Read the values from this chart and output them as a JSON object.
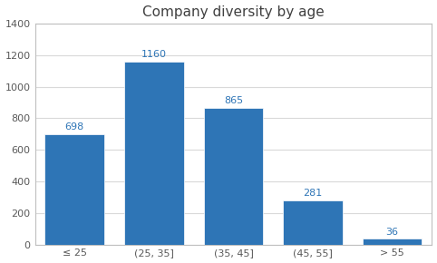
{
  "title": "Company diversity by age",
  "categories": [
    "≤ 25",
    "(25, 35]",
    "(35, 45]",
    "(45, 55]",
    "> 55"
  ],
  "values": [
    698,
    1160,
    865,
    281,
    36
  ],
  "bar_color": "#2E75B6",
  "label_color": "#2E75B6",
  "ylim": [
    0,
    1400
  ],
  "yticks": [
    0,
    200,
    400,
    600,
    800,
    1000,
    1200,
    1400
  ],
  "background_color": "#FFFFFF",
  "plot_background": "#FFFFFF",
  "border_color": "#BFBFBF",
  "title_fontsize": 11,
  "label_fontsize": 8,
  "tick_fontsize": 8,
  "bar_width": 0.75
}
